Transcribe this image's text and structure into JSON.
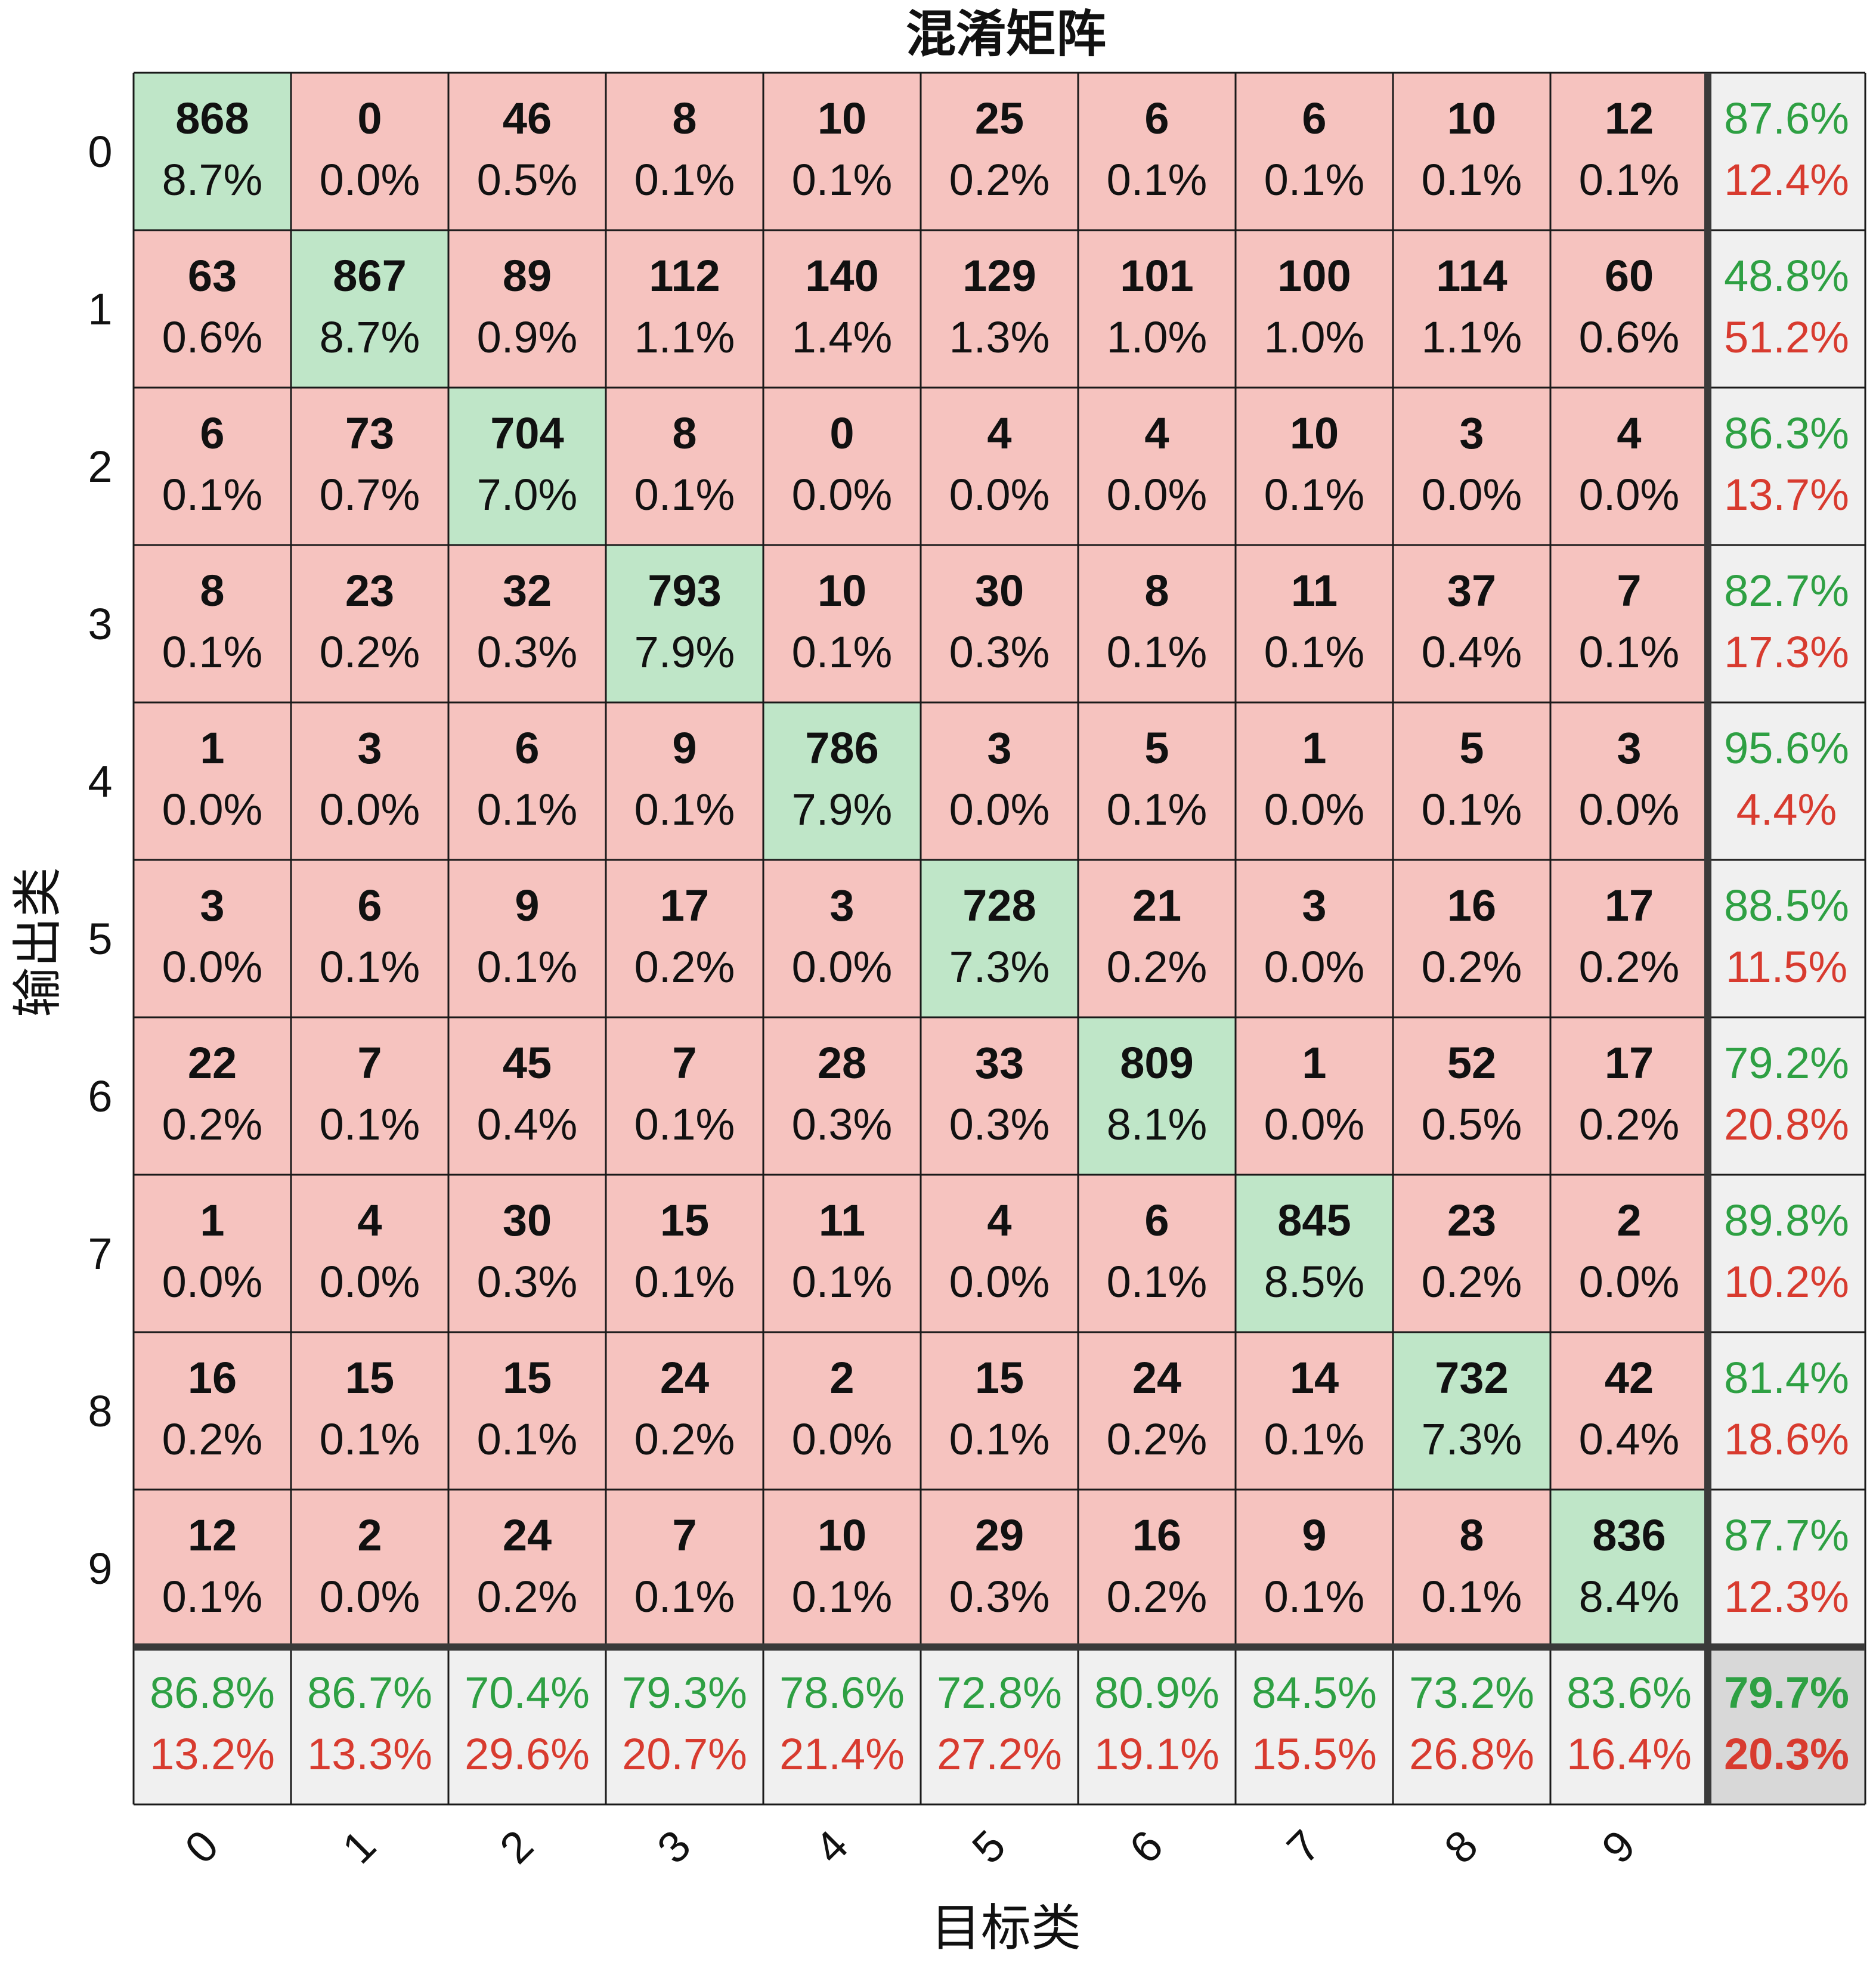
{
  "chart_data": {
    "type": "heatmap",
    "title": "混淆矩阵",
    "xlabel": "目标类",
    "ylabel": "输出类",
    "row_labels": [
      "0",
      "1",
      "2",
      "3",
      "4",
      "5",
      "6",
      "7",
      "8",
      "9"
    ],
    "col_labels": [
      "0",
      "1",
      "2",
      "3",
      "4",
      "5",
      "6",
      "7",
      "8",
      "9"
    ],
    "counts": [
      [
        868,
        0,
        46,
        8,
        10,
        25,
        6,
        6,
        10,
        12
      ],
      [
        63,
        867,
        89,
        112,
        140,
        129,
        101,
        100,
        114,
        60
      ],
      [
        6,
        73,
        704,
        8,
        0,
        4,
        4,
        10,
        3,
        4
      ],
      [
        8,
        23,
        32,
        793,
        10,
        30,
        8,
        11,
        37,
        7
      ],
      [
        1,
        3,
        6,
        9,
        786,
        3,
        5,
        1,
        5,
        3
      ],
      [
        3,
        6,
        9,
        17,
        3,
        728,
        21,
        3,
        16,
        17
      ],
      [
        22,
        7,
        45,
        7,
        28,
        33,
        809,
        1,
        52,
        17
      ],
      [
        1,
        4,
        30,
        15,
        11,
        4,
        6,
        845,
        23,
        2
      ],
      [
        16,
        15,
        15,
        24,
        2,
        15,
        24,
        14,
        732,
        42
      ],
      [
        12,
        2,
        24,
        7,
        10,
        29,
        16,
        9,
        8,
        836
      ]
    ],
    "percents": [
      [
        "8.7%",
        "0.0%",
        "0.5%",
        "0.1%",
        "0.1%",
        "0.2%",
        "0.1%",
        "0.1%",
        "0.1%",
        "0.1%"
      ],
      [
        "0.6%",
        "8.7%",
        "0.9%",
        "1.1%",
        "1.4%",
        "1.3%",
        "1.0%",
        "1.0%",
        "1.1%",
        "0.6%"
      ],
      [
        "0.1%",
        "0.7%",
        "7.0%",
        "0.1%",
        "0.0%",
        "0.0%",
        "0.0%",
        "0.1%",
        "0.0%",
        "0.0%"
      ],
      [
        "0.1%",
        "0.2%",
        "0.3%",
        "7.9%",
        "0.1%",
        "0.3%",
        "0.1%",
        "0.1%",
        "0.4%",
        "0.1%"
      ],
      [
        "0.0%",
        "0.0%",
        "0.1%",
        "0.1%",
        "7.9%",
        "0.0%",
        "0.1%",
        "0.0%",
        "0.1%",
        "0.0%"
      ],
      [
        "0.0%",
        "0.1%",
        "0.1%",
        "0.2%",
        "0.0%",
        "7.3%",
        "0.2%",
        "0.0%",
        "0.2%",
        "0.2%"
      ],
      [
        "0.2%",
        "0.1%",
        "0.4%",
        "0.1%",
        "0.3%",
        "0.3%",
        "8.1%",
        "0.0%",
        "0.5%",
        "0.2%"
      ],
      [
        "0.0%",
        "0.0%",
        "0.3%",
        "0.1%",
        "0.1%",
        "0.0%",
        "0.1%",
        "8.5%",
        "0.2%",
        "0.0%"
      ],
      [
        "0.2%",
        "0.1%",
        "0.1%",
        "0.2%",
        "0.0%",
        "0.1%",
        "0.2%",
        "0.1%",
        "7.3%",
        "0.4%"
      ],
      [
        "0.1%",
        "0.0%",
        "0.2%",
        "0.1%",
        "0.1%",
        "0.3%",
        "0.2%",
        "0.1%",
        "0.1%",
        "8.4%"
      ]
    ],
    "row_summary": [
      [
        "87.6%",
        "12.4%"
      ],
      [
        "48.8%",
        "51.2%"
      ],
      [
        "86.3%",
        "13.7%"
      ],
      [
        "82.7%",
        "17.3%"
      ],
      [
        "95.6%",
        "4.4%"
      ],
      [
        "88.5%",
        "11.5%"
      ],
      [
        "79.2%",
        "20.8%"
      ],
      [
        "89.8%",
        "10.2%"
      ],
      [
        "81.4%",
        "18.6%"
      ],
      [
        "87.7%",
        "12.3%"
      ]
    ],
    "col_summary": [
      [
        "86.8%",
        "13.2%"
      ],
      [
        "86.7%",
        "13.3%"
      ],
      [
        "70.4%",
        "29.6%"
      ],
      [
        "79.3%",
        "20.7%"
      ],
      [
        "78.6%",
        "21.4%"
      ],
      [
        "72.8%",
        "27.2%"
      ],
      [
        "80.9%",
        "19.1%"
      ],
      [
        "84.5%",
        "15.5%"
      ],
      [
        "73.2%",
        "26.8%"
      ],
      [
        "83.6%",
        "16.4%"
      ]
    ],
    "overall": [
      "79.7%",
      "20.3%"
    ],
    "colors": {
      "correct_cell": "#bfe6c8",
      "incorrect_cell": "#f6c3bf",
      "summary_cell": "#f0f0f0",
      "overall_cell": "#d8d8d8",
      "good_text": "#2ea043",
      "bad_text": "#d83b2f",
      "grid": "#1a1a1a",
      "thick_line": "#3a3a3a"
    }
  }
}
